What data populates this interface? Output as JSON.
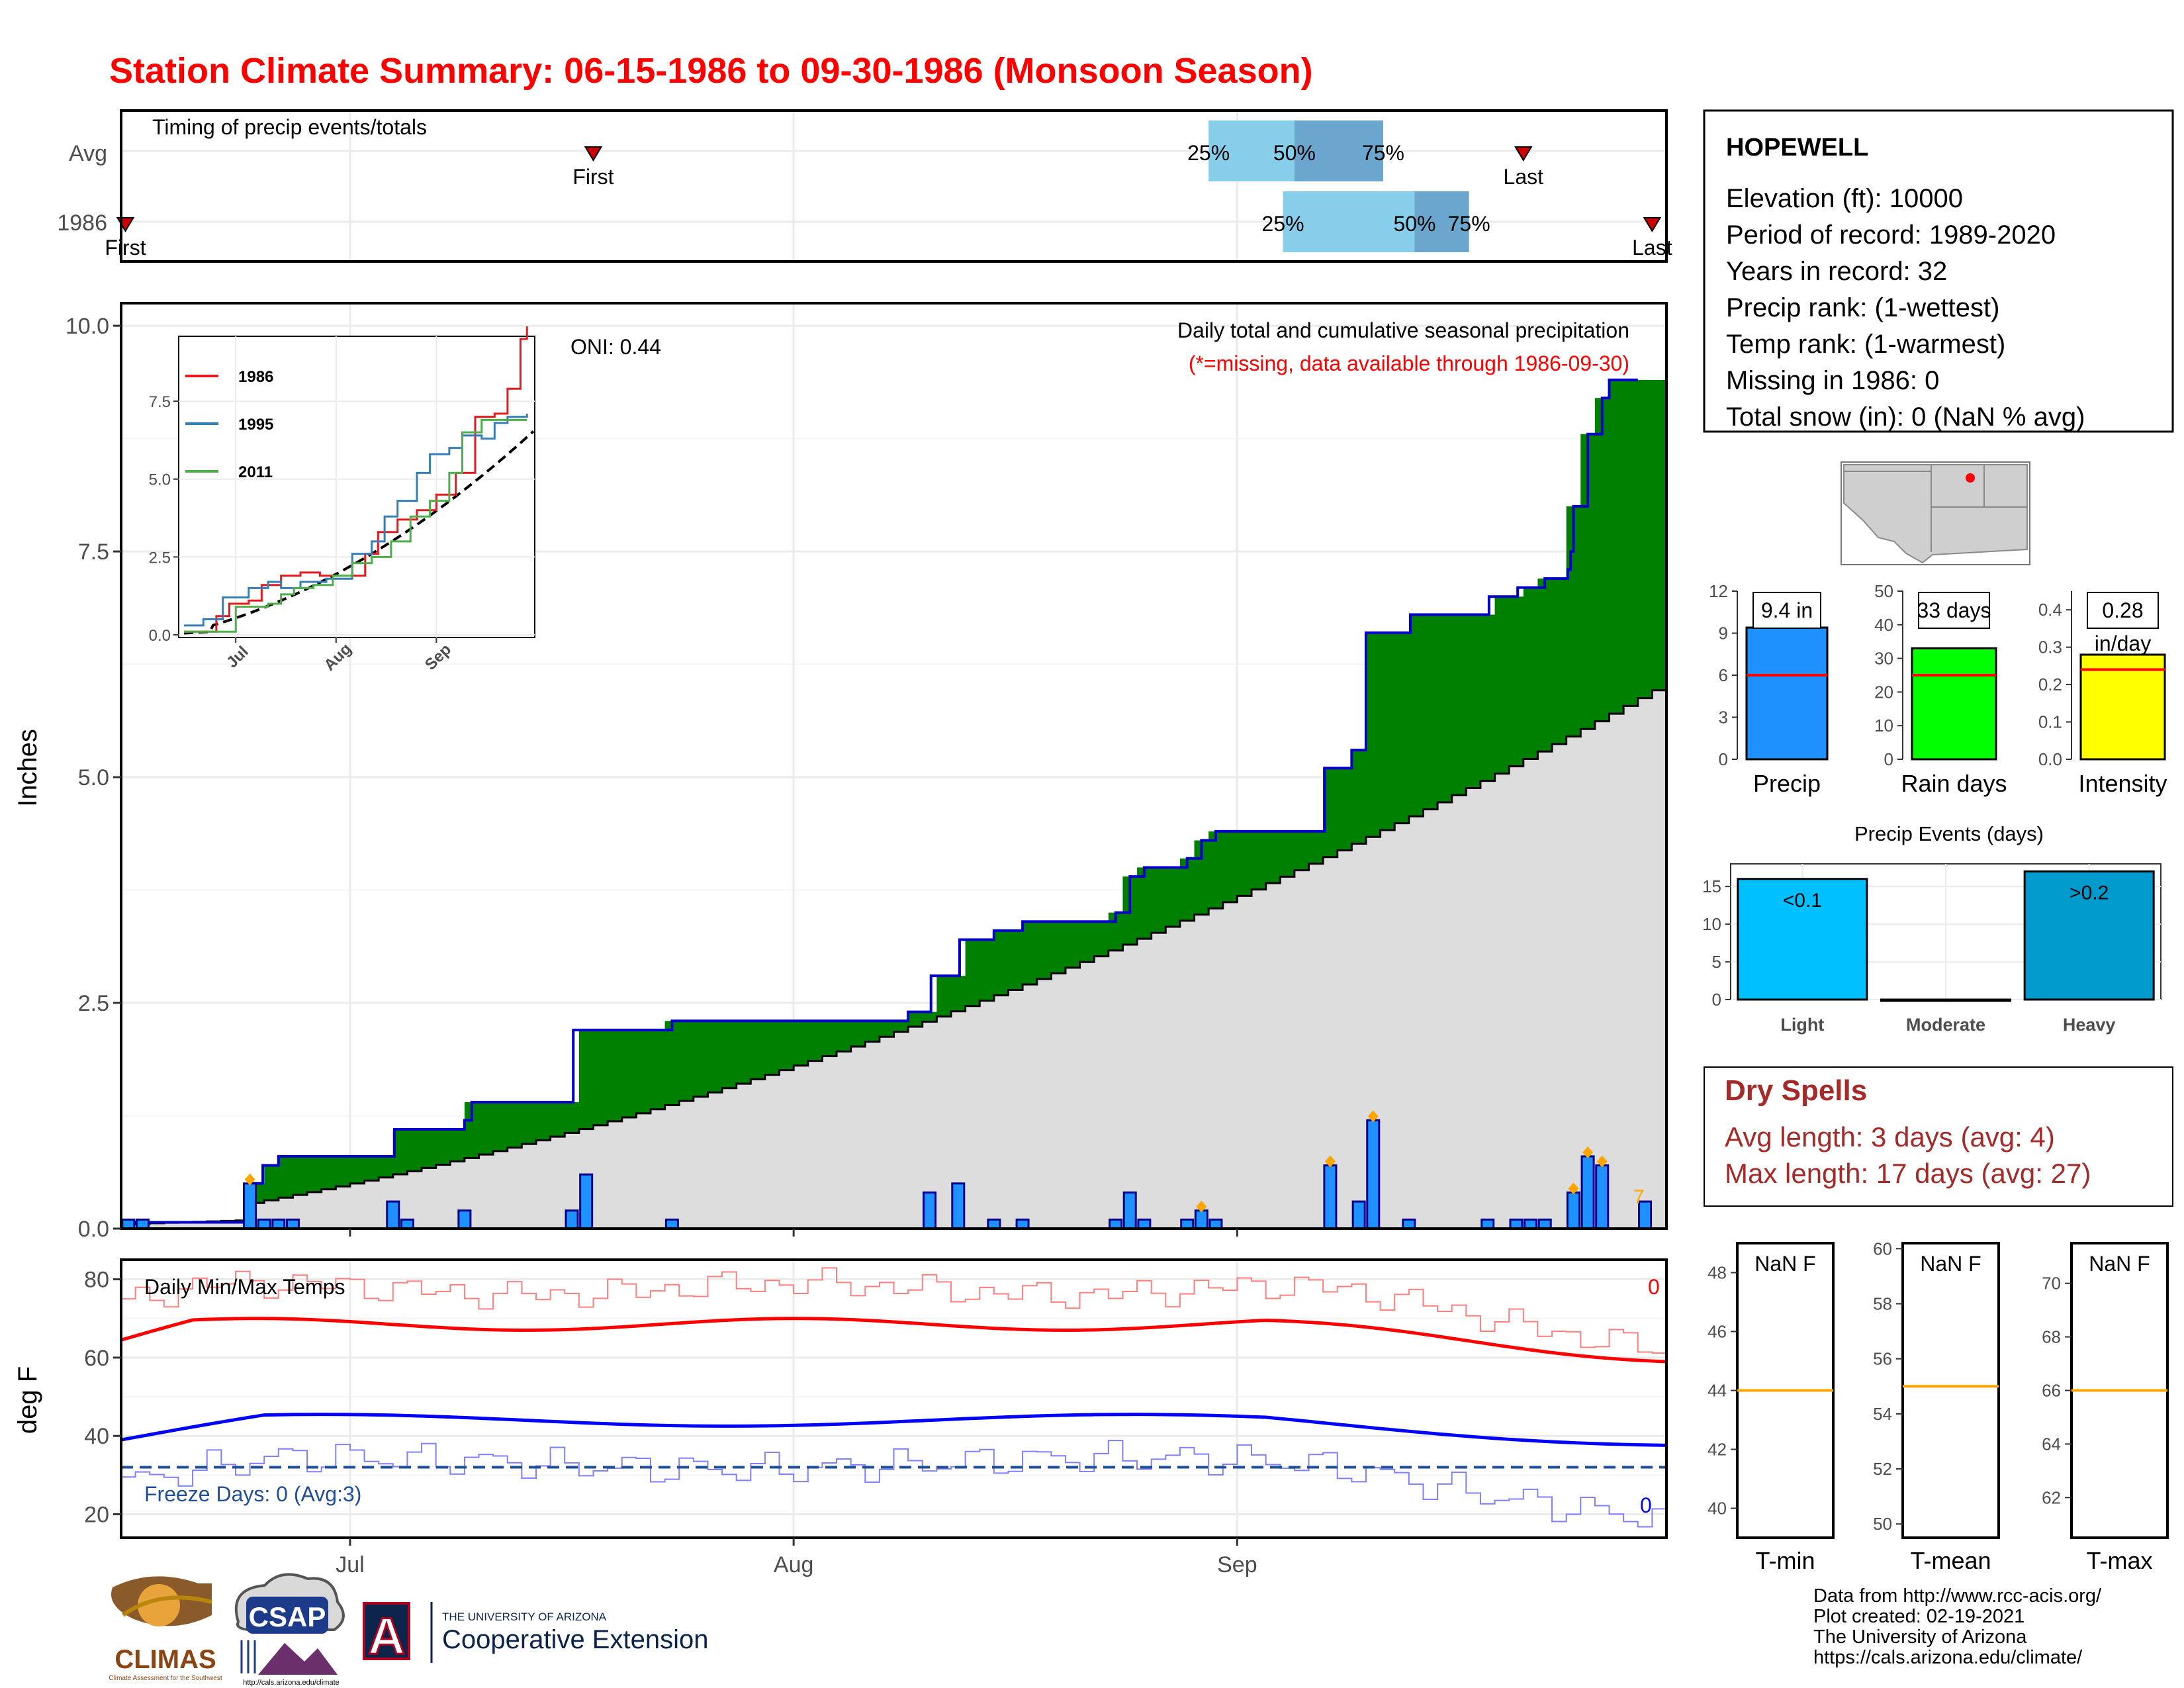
{
  "title": "Station Climate Summary: 06-15-1986 to 09-30-1986 (Monsoon Season)",
  "timing": {
    "label": "Timing of precip events/totals",
    "rows": [
      {
        "name": "Avg",
        "first_day": 33,
        "last_day": 98,
        "q25": 76,
        "q50": 82,
        "q75": 88.2
      },
      {
        "name": "1986",
        "first_day": 0.3,
        "last_day": 107,
        "q25": 81.2,
        "q50": 90.4,
        "q75": 94.2
      }
    ],
    "first_label": "First",
    "last_label": "Last",
    "q25_label": "25%",
    "q50_label": "50%",
    "q75_label": "75%"
  },
  "station": {
    "name": "HOPEWELL",
    "lines": [
      "Elevation (ft): 10000",
      "Period of record: 1989-2020",
      "Years in record: 32",
      "Precip rank:  (1-wettest)",
      "Temp rank:  (1-warmest)",
      "Missing in 1986: 0",
      "Total snow (in): 0 (NaN % avg)"
    ]
  },
  "chart_data": [
    {
      "type": "area",
      "id": "cumulative-precip",
      "title": "Daily total and cumulative seasonal precipitation",
      "subtitle": "(*=missing, data available through 1986-09-30)",
      "ylabel": "Inches",
      "ylim": [
        0,
        10.25
      ],
      "yticks": [
        "0.0",
        "2.5",
        "5.0",
        "7.5",
        "10.0"
      ],
      "xticks": [
        {
          "day": 16,
          "label": "Jul"
        },
        {
          "day": 47,
          "label": "Aug"
        },
        {
          "day": 78,
          "label": "Sep"
        }
      ],
      "xlim": [
        0,
        108
      ],
      "oni_label": "ONI: 0.44",
      "corner_text": "7",
      "daily_precip": [
        {
          "day": 0.5,
          "value": 0.1
        },
        {
          "day": 1.5,
          "value": 0.1
        },
        {
          "day": 9.0,
          "value": 0.5
        },
        {
          "day": 10.0,
          "value": 0.1
        },
        {
          "day": 11.0,
          "value": 0.1
        },
        {
          "day": 12.0,
          "value": 0.1
        },
        {
          "day": 19.0,
          "value": 0.3
        },
        {
          "day": 20.0,
          "value": 0.1
        },
        {
          "day": 24.0,
          "value": 0.2
        },
        {
          "day": 31.5,
          "value": 0.2
        },
        {
          "day": 32.5,
          "value": 0.6
        },
        {
          "day": 38.5,
          "value": 0.1
        },
        {
          "day": 56.5,
          "value": 0.4
        },
        {
          "day": 58.5,
          "value": 0.5
        },
        {
          "day": 61.0,
          "value": 0.1
        },
        {
          "day": 63.0,
          "value": 0.1
        },
        {
          "day": 69.5,
          "value": 0.1
        },
        {
          "day": 70.5,
          "value": 0.4
        },
        {
          "day": 71.5,
          "value": 0.1
        },
        {
          "day": 74.5,
          "value": 0.1
        },
        {
          "day": 75.5,
          "value": 0.2
        },
        {
          "day": 76.5,
          "value": 0.1
        },
        {
          "day": 84.5,
          "value": 0.7
        },
        {
          "day": 86.5,
          "value": 0.3
        },
        {
          "day": 87.5,
          "value": 1.2
        },
        {
          "day": 90.0,
          "value": 0.1
        },
        {
          "day": 95.5,
          "value": 0.1
        },
        {
          "day": 97.5,
          "value": 0.1
        },
        {
          "day": 98.5,
          "value": 0.1
        },
        {
          "day": 99.5,
          "value": 0.1
        },
        {
          "day": 101.5,
          "value": 0.4
        },
        {
          "day": 102.5,
          "value": 0.8
        },
        {
          "day": 103.5,
          "value": 0.7
        },
        {
          "day": 106.5,
          "value": 0.3
        }
      ],
      "marker_days": [
        9.0,
        75.5,
        84.5,
        87.5,
        101.5,
        102.5,
        103.5
      ],
      "cumulative_1986": [
        [
          0,
          0.07
        ],
        [
          9,
          0.1
        ],
        [
          9.1,
          0.5
        ],
        [
          9.9,
          0.7
        ],
        [
          11,
          0.8
        ],
        [
          19,
          0.8
        ],
        [
          19.1,
          1.1
        ],
        [
          23,
          1.1
        ],
        [
          24,
          1.2
        ],
        [
          24.5,
          1.4
        ],
        [
          31.5,
          1.4
        ],
        [
          31.6,
          2.2
        ],
        [
          37.5,
          2.2
        ],
        [
          38.5,
          2.3
        ],
        [
          49,
          2.3
        ],
        [
          50,
          2.3
        ],
        [
          52,
          2.3
        ],
        [
          55,
          2.4
        ],
        [
          56.5,
          2.4
        ],
        [
          56.6,
          2.8
        ],
        [
          58,
          2.8
        ],
        [
          58.6,
          3.2
        ],
        [
          61,
          3.3
        ],
        [
          63,
          3.4
        ],
        [
          69.5,
          3.5
        ],
        [
          70.5,
          3.9
        ],
        [
          71.5,
          4.0
        ],
        [
          74.5,
          4.1
        ],
        [
          75.5,
          4.3
        ],
        [
          76.5,
          4.4
        ],
        [
          84,
          4.4
        ],
        [
          84.1,
          5.1
        ],
        [
          85.9,
          5.1
        ],
        [
          86,
          5.3
        ],
        [
          86.9,
          5.3
        ],
        [
          87,
          6.6
        ],
        [
          90,
          6.6
        ],
        [
          90.1,
          6.8
        ],
        [
          95.5,
          6.8
        ],
        [
          95.6,
          7.0
        ],
        [
          97.5,
          7.0
        ],
        [
          97.6,
          7.1
        ],
        [
          99.5,
          7.2
        ],
        [
          101.1,
          7.3
        ],
        [
          101.3,
          7.5
        ],
        [
          101.5,
          8.0
        ],
        [
          102.5,
          8.8
        ],
        [
          103.5,
          9.2
        ],
        [
          104,
          9.4
        ]
      ],
      "cumulative_avg_end": 6.0,
      "inset": {
        "ylim": [
          0,
          9.5
        ],
        "yticks": [
          "0.0",
          "2.5",
          "5.0",
          "7.5"
        ],
        "xticks": [
          "Jul",
          "Aug",
          "Sep"
        ],
        "series": [
          {
            "name": "1986",
            "color": "#e41a1c"
          },
          {
            "name": "1995",
            "color": "#377eb8"
          },
          {
            "name": "2011",
            "color": "#4daf4a"
          }
        ]
      }
    },
    {
      "type": "line",
      "id": "daily-temps",
      "title": "Daily Min/Max Temps",
      "ylabel": "deg F",
      "ylim": [
        14,
        85
      ],
      "yticks": [
        "20",
        "40",
        "60",
        "80"
      ],
      "xticks": [
        "Jul",
        "Aug",
        "Sep"
      ],
      "freeze_line": 32,
      "freeze_label": "Freeze Days: 0 (Avg:3)",
      "max_count_label": "0",
      "min_count_label": "0"
    },
    {
      "type": "bar",
      "id": "precip-summary",
      "categories": [
        "Precip",
        "Rain days",
        "Intensity"
      ],
      "values": [
        9.4,
        33,
        0.28
      ],
      "averages": [
        6.0,
        25,
        0.24
      ],
      "labels": [
        "9.4 in",
        "33 days",
        "0.28 in/day"
      ],
      "ylims": [
        [
          0,
          12
        ],
        [
          0,
          50
        ],
        [
          0,
          0.45
        ]
      ],
      "yticks": [
        [
          "0",
          "3",
          "6",
          "9",
          "12"
        ],
        [
          "0",
          "10",
          "20",
          "30",
          "40",
          "50"
        ],
        [
          "0.0",
          "0.1",
          "0.2",
          "0.3",
          "0.4"
        ]
      ],
      "colors": [
        "#1e90ff",
        "#00ff00",
        "#ffff00"
      ]
    },
    {
      "type": "bar",
      "id": "precip-events",
      "title": "Precip Events (days)",
      "categories": [
        "Light",
        "Moderate",
        "Heavy"
      ],
      "values": [
        16,
        0,
        17
      ],
      "labels": [
        "<0.1",
        "",
        ">0.2"
      ],
      "ylim": [
        0,
        18
      ],
      "yticks": [
        "0",
        "5",
        "10",
        "15"
      ],
      "colors": [
        "#00bfff",
        "#555555",
        "#009acd"
      ]
    },
    {
      "type": "bar",
      "id": "temp-summary",
      "categories": [
        "T-min",
        "T-mean",
        "T-max"
      ],
      "labels": [
        "NaN F",
        "NaN F",
        "NaN F"
      ],
      "averages": [
        44,
        55,
        66
      ],
      "ylims": [
        [
          39,
          49
        ],
        [
          49.5,
          60.2
        ],
        [
          60.5,
          71.5
        ]
      ],
      "yticks": [
        [
          "40",
          "42",
          "44",
          "46",
          "48"
        ],
        [
          "50",
          "52",
          "54",
          "56",
          "58",
          "60"
        ],
        [
          "62",
          "64",
          "66",
          "68",
          "70"
        ]
      ]
    }
  ],
  "dry_spells": {
    "title": "Dry Spells",
    "avg": "Avg length: 3 days (avg: 4)",
    "max": "Max length: 17 days (avg: 27)"
  },
  "footer": {
    "credits": [
      "Data from http://www.rcc-acis.org/",
      "Plot created: 02-19-2021",
      "The University of Arizona",
      "https://cals.arizona.edu/climate/"
    ],
    "logos": {
      "climas": "CLIMAS",
      "climas_sub": "Climate Assessment for the Southwest",
      "csap": "CSAP",
      "csap_url": "http://cals.arizona.edu/climate",
      "ua_letter": "A",
      "ua_top": "THE UNIVERSITY OF ARIZONA",
      "ua_bottom": "Cooperative Extension"
    }
  }
}
